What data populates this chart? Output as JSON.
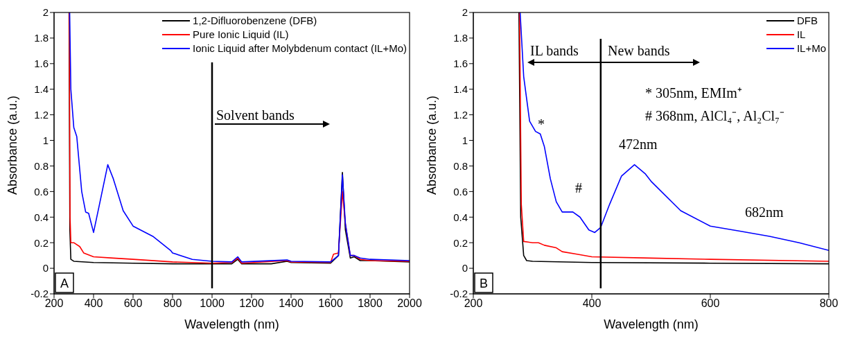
{
  "chart_data": [
    {
      "type": "line",
      "xlabel": "Wavelength (nm)",
      "ylabel": "Absorbance (a.u.)",
      "xlim": [
        200,
        2000
      ],
      "xticks": [
        200,
        400,
        600,
        800,
        1000,
        1200,
        1400,
        1600,
        1800,
        2000
      ],
      "ylim": [
        -0.2,
        2
      ],
      "yticks": [
        -0.2,
        0,
        0.2,
        0.4,
        0.6,
        0.8,
        1,
        1.2,
        1.4,
        1.6,
        1.8,
        2
      ],
      "grid": false,
      "legend": "top right",
      "marker": "none",
      "line_style": "solid",
      "series": [
        {
          "name": "1,2-Difluorobenzene (DFB)",
          "color": "#000000",
          "x": [
            276,
            280,
            285,
            300,
            400,
            600,
            800,
            1000,
            1100,
            1130,
            1150,
            1300,
            1380,
            1400,
            1600,
            1640,
            1660,
            1675,
            1700,
            1720,
            1750,
            1800,
            1900,
            2000
          ],
          "values": [
            2,
            0.3,
            0.07,
            0.055,
            0.045,
            0.04,
            0.035,
            0.035,
            0.035,
            0.07,
            0.035,
            0.035,
            0.055,
            0.045,
            0.04,
            0.1,
            0.75,
            0.3,
            0.08,
            0.09,
            0.06,
            0.06,
            0.055,
            0.05
          ]
        },
        {
          "name": "Pure Ionic Liquid (IL)",
          "color": "#ff0000",
          "x": [
            277,
            281,
            285,
            300,
            330,
            350,
            400,
            500,
            600,
            800,
            1000,
            1100,
            1130,
            1150,
            1380,
            1400,
            1600,
            1615,
            1640,
            1660,
            1675,
            1700,
            1720,
            1750,
            1800,
            2000
          ],
          "values": [
            2,
            0.4,
            0.2,
            0.2,
            0.17,
            0.12,
            0.09,
            0.08,
            0.07,
            0.05,
            0.04,
            0.045,
            0.08,
            0.04,
            0.06,
            0.05,
            0.045,
            0.11,
            0.12,
            0.6,
            0.35,
            0.1,
            0.1,
            0.07,
            0.06,
            0.055
          ]
        },
        {
          "name": "Ionic Liquid after Molybdenum contact (IL+Mo)",
          "color": "#0000ff",
          "x": [
            279,
            285,
            300,
            315,
            340,
            360,
            375,
            400,
            430,
            472,
            500,
            550,
            600,
            700,
            790,
            800,
            900,
            1000,
            1100,
            1130,
            1150,
            1380,
            1400,
            1600,
            1640,
            1660,
            1675,
            1700,
            1720,
            1750,
            1800,
            2000
          ],
          "values": [
            2,
            1.4,
            1.1,
            1.03,
            0.6,
            0.44,
            0.43,
            0.28,
            0.5,
            0.81,
            0.7,
            0.45,
            0.33,
            0.25,
            0.14,
            0.12,
            0.07,
            0.055,
            0.05,
            0.09,
            0.05,
            0.065,
            0.055,
            0.05,
            0.1,
            0.73,
            0.35,
            0.1,
            0.1,
            0.08,
            0.07,
            0.06
          ]
        }
      ],
      "ref_lines": [
        {
          "axis": "x",
          "value": 1000,
          "color": "#000000"
        }
      ],
      "annotations": [
        "A",
        "Solvent bands"
      ]
    },
    {
      "type": "line",
      "xlabel": "Wavelength (nm)",
      "ylabel": "Absorbance (a.u.)",
      "xlim": [
        200,
        800
      ],
      "xticks": [
        200,
        400,
        600,
        800
      ],
      "ylim": [
        -0.2,
        2
      ],
      "yticks": [
        -0.2,
        0,
        0.2,
        0.4,
        0.6,
        0.8,
        1,
        1.2,
        1.4,
        1.6,
        1.8,
        2
      ],
      "grid": false,
      "legend": "top right",
      "marker": "none",
      "line_style": "solid",
      "series": [
        {
          "name": "DFB",
          "color": "#000000",
          "x": [
            277,
            280,
            285,
            290,
            300,
            400,
            600,
            800
          ],
          "values": [
            2,
            0.4,
            0.1,
            0.06,
            0.055,
            0.045,
            0.04,
            0.035
          ]
        },
        {
          "name": "IL",
          "color": "#ff0000",
          "x": [
            278,
            281,
            285,
            300,
            310,
            320,
            340,
            350,
            375,
            400,
            500,
            600,
            800
          ],
          "values": [
            2,
            0.5,
            0.21,
            0.2,
            0.2,
            0.18,
            0.16,
            0.13,
            0.11,
            0.09,
            0.08,
            0.07,
            0.055
          ]
        },
        {
          "name": "IL+Mo",
          "color": "#0000ff",
          "x": [
            279,
            285,
            295,
            305,
            313,
            320,
            330,
            340,
            350,
            368,
            380,
            395,
            405,
            415,
            430,
            450,
            472,
            490,
            500,
            550,
            600,
            650,
            700,
            750,
            800
          ],
          "values": [
            2,
            1.5,
            1.15,
            1.07,
            1.05,
            0.95,
            0.7,
            0.52,
            0.44,
            0.44,
            0.4,
            0.3,
            0.28,
            0.32,
            0.5,
            0.72,
            0.81,
            0.74,
            0.68,
            0.45,
            0.33,
            0.29,
            0.25,
            0.2,
            0.14
          ]
        }
      ],
      "ref_lines": [
        {
          "axis": "x",
          "value": 415,
          "color": "#000000"
        }
      ],
      "annotations": [
        "B",
        "IL bands",
        "New bands",
        "* 305nm, EMIm⁺",
        "# 368nm, AlCl₄⁻, Al₂Cl₇⁻",
        "*",
        "#",
        "472nm",
        "682nm"
      ]
    }
  ]
}
